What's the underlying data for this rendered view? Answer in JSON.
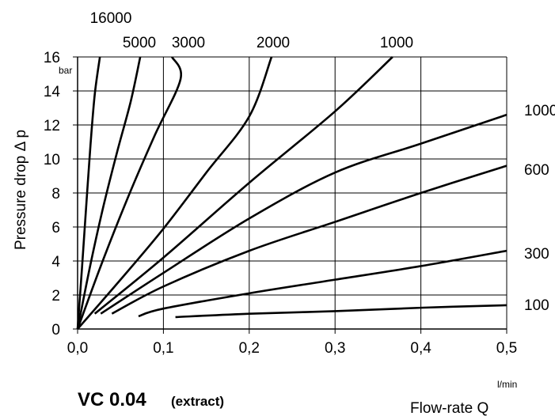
{
  "chart_data": {
    "type": "line",
    "title": "VC 0.04",
    "subtitle": "(extract)",
    "xlabel": "Flow-rate Q",
    "ylabel": "Pressure drop Δ p",
    "x_unit": "l/min",
    "y_unit": "bar",
    "xlim": [
      0,
      0.5
    ],
    "ylim": [
      0,
      16
    ],
    "x_ticks": [
      0,
      0.1,
      0.2,
      0.3,
      0.4,
      0.5
    ],
    "x_tick_labels": [
      "0,0",
      "0,1",
      "0,2",
      "0,3",
      "0,4",
      "0,5"
    ],
    "y_ticks": [
      0,
      2,
      4,
      6,
      8,
      10,
      12,
      14,
      16
    ],
    "y_tick_labels": [
      "0",
      "2",
      "4",
      "6",
      "8",
      "10",
      "12",
      "14",
      "16"
    ],
    "grid": true,
    "series": [
      {
        "name": "16000",
        "label_position": "top",
        "points": [
          [
            0,
            0
          ],
          [
            0.005,
            3.5
          ],
          [
            0.01,
            7.2
          ],
          [
            0.015,
            10.8
          ],
          [
            0.02,
            13.8
          ],
          [
            0.026,
            16
          ]
        ]
      },
      {
        "name": "5000",
        "label_position": "top",
        "points": [
          [
            0,
            0
          ],
          [
            0.015,
            3.8
          ],
          [
            0.03,
            7.2
          ],
          [
            0.046,
            10.4
          ],
          [
            0.062,
            13.4
          ],
          [
            0.073,
            16
          ]
        ]
      },
      {
        "name": "3000",
        "label_position": "top",
        "points": [
          [
            0,
            0
          ],
          [
            0.03,
            4.1
          ],
          [
            0.06,
            7.9
          ],
          [
            0.09,
            11.4
          ],
          [
            0.12,
            14.7
          ],
          [
            0.11,
            16
          ]
        ]
      },
      {
        "name": "2000",
        "label_position": "top",
        "points": [
          [
            0,
            0
          ],
          [
            0.05,
            2.9
          ],
          [
            0.1,
            5.9
          ],
          [
            0.15,
            9.2
          ],
          [
            0.2,
            12.5
          ],
          [
            0.226,
            16
          ]
        ]
      },
      {
        "name": "1000",
        "label_position": "top",
        "points": [
          [
            0.02,
            0.9
          ],
          [
            0.1,
            4.2
          ],
          [
            0.2,
            8.6
          ],
          [
            0.3,
            12.8
          ],
          [
            0.367,
            16
          ]
        ]
      },
      {
        "name": "1000",
        "label_position": "right",
        "points": [
          [
            0.027,
            0.9
          ],
          [
            0.1,
            3.3
          ],
          [
            0.2,
            6.5
          ],
          [
            0.3,
            9.2
          ],
          [
            0.4,
            10.9
          ],
          [
            0.5,
            12.6
          ]
        ]
      },
      {
        "name": "600",
        "label_position": "right",
        "points": [
          [
            0.04,
            0.9
          ],
          [
            0.1,
            2.5
          ],
          [
            0.2,
            4.6
          ],
          [
            0.3,
            6.3
          ],
          [
            0.4,
            8.0
          ],
          [
            0.5,
            9.6
          ]
        ]
      },
      {
        "name": "300",
        "label_position": "right",
        "points": [
          [
            0.071,
            0.75
          ],
          [
            0.1,
            1.2
          ],
          [
            0.2,
            2.1
          ],
          [
            0.3,
            2.9
          ],
          [
            0.4,
            3.7
          ],
          [
            0.5,
            4.6
          ]
        ]
      },
      {
        "name": "100",
        "label_position": "right",
        "points": [
          [
            0.114,
            0.7
          ],
          [
            0.2,
            0.9
          ],
          [
            0.3,
            1.05
          ],
          [
            0.4,
            1.25
          ],
          [
            0.5,
            1.4
          ]
        ]
      }
    ]
  }
}
